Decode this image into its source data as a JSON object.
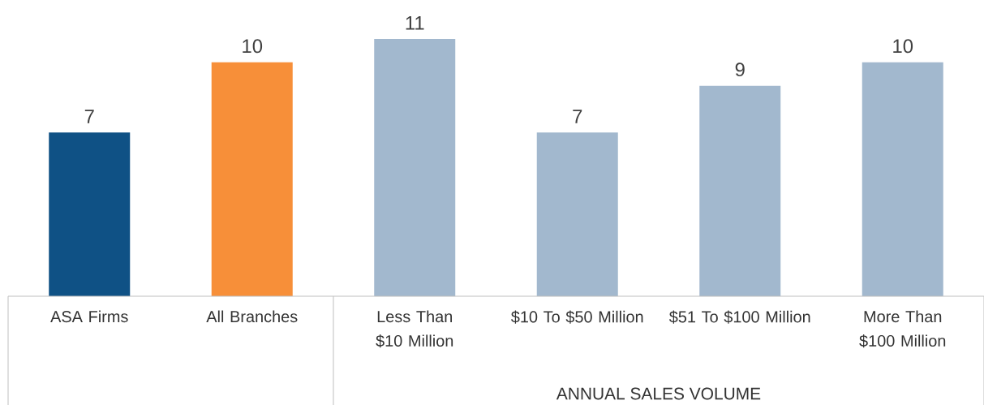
{
  "chart_data": {
    "type": "bar",
    "categories": [
      "ASA Firms",
      "All Branches",
      "Less Than $10 Million",
      "$10 To $50 Million",
      "$51 To $100 Million",
      "More Than $100 Million"
    ],
    "values": [
      7,
      10,
      11,
      7,
      9,
      10
    ],
    "colors": [
      "#0f5185",
      "#f78f39",
      "#a2b8ce",
      "#a2b8ce",
      "#a2b8ce",
      "#a2b8ce"
    ],
    "xlabel": "ANNUAL SALES VOLUME",
    "data_labels": true
  }
}
